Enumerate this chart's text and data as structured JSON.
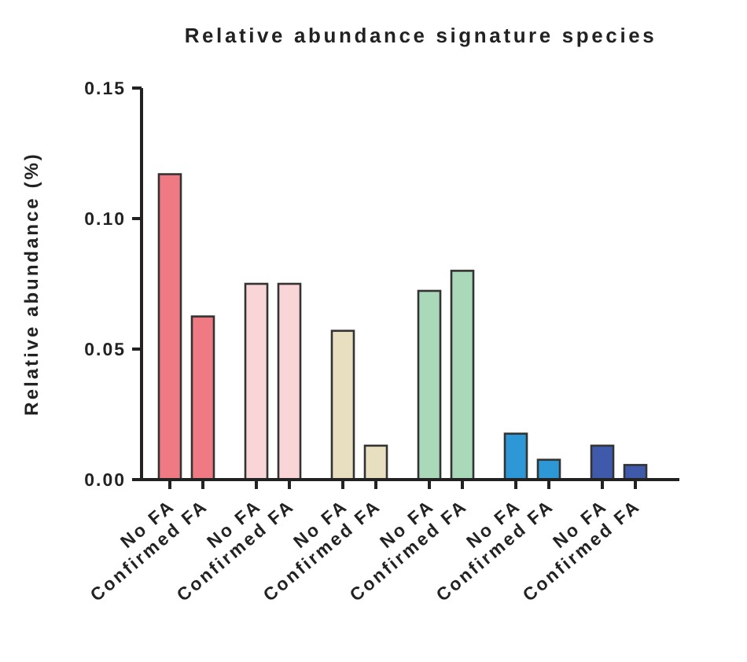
{
  "chart_data": {
    "type": "bar",
    "title": "Relative abundance signature species",
    "ylabel": "Relative abundance (%)",
    "categories": [
      "No FA",
      "Confirmed FA",
      "No FA",
      "Confirmed FA",
      "No FA",
      "Confirmed FA",
      "No FA",
      "Confirmed FA",
      "No FA",
      "Confirmed FA",
      "No FA",
      "Confirmed FA"
    ],
    "values": [
      0.117,
      0.0625,
      0.075,
      0.075,
      0.057,
      0.013,
      0.0723,
      0.08,
      0.0176,
      0.0076,
      0.013,
      0.0056
    ],
    "colors": [
      "#f07a84",
      "#f07a84",
      "#f9d5d8",
      "#f9d5d8",
      "#e8dfc0",
      "#e8dfc0",
      "#a9d9b9",
      "#a9d9b9",
      "#2e97d6",
      "#2e97d6",
      "#3f5aaa",
      "#3f5aaa"
    ],
    "ylim": [
      0,
      0.15
    ],
    "yticks": [
      "0.00",
      {
        "value": 0.05,
        "label": "0.05"
      },
      {
        "value": 0.1,
        "label": "0.10"
      },
      {
        "value": 0.15,
        "label": "0.15"
      }
    ],
    "grid": false
  }
}
